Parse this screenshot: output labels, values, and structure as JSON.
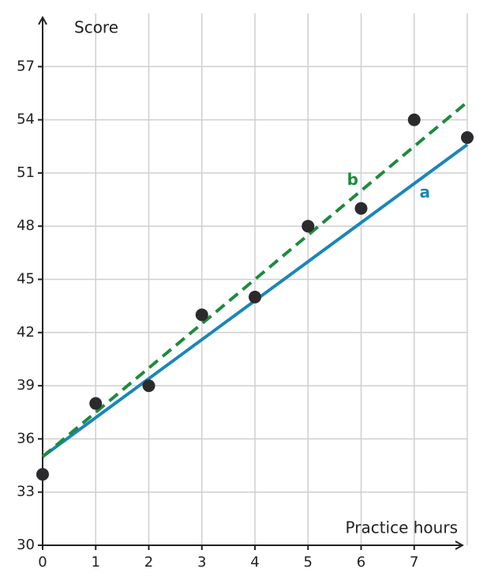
{
  "chart_data": {
    "type": "scatter",
    "x_label": "Practice hours",
    "y_label": "Score",
    "xlim": [
      0,
      8
    ],
    "ylim": [
      30,
      60
    ],
    "xticks": [
      0,
      1,
      2,
      3,
      4,
      5,
      6,
      7
    ],
    "yticks": [
      30,
      33,
      36,
      39,
      42,
      45,
      48,
      51,
      54,
      57
    ],
    "grid": true,
    "points": {
      "x": [
        0,
        1,
        2,
        3,
        4,
        5,
        6,
        7,
        8
      ],
      "values": [
        34,
        38,
        39,
        43,
        44,
        48,
        49,
        54,
        53
      ],
      "color": "#2b2b2e"
    },
    "series": [
      {
        "name": "a",
        "color": "#1a86b8",
        "style": "solid",
        "x": [
          0,
          8
        ],
        "values": [
          35,
          52.6
        ]
      },
      {
        "name": "b",
        "color": "#1e8a3e",
        "style": "dashed",
        "x": [
          0,
          8
        ],
        "values": [
          35,
          55
        ]
      }
    ]
  }
}
